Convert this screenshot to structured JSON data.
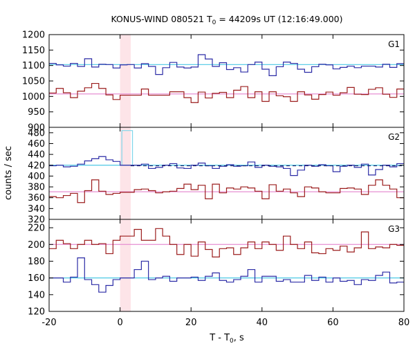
{
  "colors": {
    "blue": "#2b2ba6",
    "red": "#9b1c1c",
    "cyan": "#4cc8e4",
    "pink": "#e68fd2",
    "highlight": "#fde4e8",
    "peak": "#7fd6ea",
    "dashed": "#1a1a66"
  },
  "chart_data": {
    "type": "line",
    "title": {
      "main": "KONUS-WIND 080521 T",
      "sub": "0",
      "rest": " = 44209s UT (12:16:49.000)"
    },
    "xlabel": {
      "main": "T - T",
      "sub": "0",
      "rest": ", s"
    },
    "ylabel": "counts / sec",
    "xlim": [
      -20,
      80
    ],
    "xticks": [
      -20,
      0,
      20,
      40,
      60,
      80
    ],
    "highlight": [
      0,
      3
    ],
    "bin_width": 2,
    "bin_start": -20,
    "panels": [
      {
        "label": "G1",
        "ylim": [
          900,
          1200
        ],
        "yticks": [
          900,
          950,
          1000,
          1050,
          1100,
          1150,
          1200
        ],
        "series": [
          {
            "color": "blue",
            "values": [
              1107,
              1102,
              1098,
              1107,
              1097,
              1122,
              1095,
              1104,
              1103,
              1092,
              1102,
              1103,
              1092,
              1106,
              1097,
              1071,
              1093,
              1110,
              1095,
              1092,
              1095,
              1135,
              1121,
              1097,
              1109,
              1087,
              1093,
              1079,
              1103,
              1111,
              1088,
              1067,
              1096,
              1111,
              1107,
              1088,
              1078,
              1096,
              1104,
              1102,
              1089,
              1094,
              1098,
              1093,
              1098,
              1098,
              1095,
              1104,
              1094,
              1106
            ],
            "mean": 1103
          },
          {
            "color": "red",
            "values": [
              1011,
              1026,
              1012,
              996,
              1017,
              1028,
              1042,
              1026,
              1005,
              990,
              1004,
              1004,
              1004,
              1024,
              1004,
              1004,
              1004,
              1015,
              1015,
              996,
              980,
              1014,
              995,
              1010,
              1013,
              996,
              1020,
              1032,
              996,
              1015,
              984,
              1015,
              1002,
              999,
              984,
              1015,
              1005,
              991,
              1006,
              1014,
              1004,
              1012,
              1029,
              1007,
              1006,
              1023,
              1028,
              1007,
              997,
              1024
            ],
            "mean": 1008
          }
        ]
      },
      {
        "label": "G2",
        "ylim": [
          320,
          490
        ],
        "yticks": [
          320,
          340,
          360,
          380,
          400,
          420,
          440,
          460,
          480
        ],
        "series": [
          {
            "color": "blue",
            "values": [
              419,
              420,
              417,
              418,
              422,
              428,
              432,
              436,
              430,
              427,
              420,
              420,
              420,
              422,
              414,
              416,
              420,
              423,
              415,
              414,
              420,
              424,
              419,
              414,
              418,
              421,
              418,
              419,
              426,
              416,
              420,
              418,
              417,
              414,
              401,
              411,
              420,
              418,
              421,
              419,
              408,
              418,
              420,
              416,
              422,
              402,
              412,
              420,
              417,
              423
            ],
            "mean": 420
          },
          {
            "color": "red",
            "values": [
              362,
              360,
              364,
              368,
              351,
              373,
              393,
              372,
              366,
              368,
              370,
              370,
              375,
              376,
              373,
              369,
              371,
              372,
              377,
              385,
              375,
              383,
              358,
              385,
              369,
              378,
              376,
              380,
              378,
              372,
              358,
              384,
              372,
              376,
              369,
              362,
              380,
              378,
              371,
              369,
              369,
              377,
              378,
              376,
              366,
              383,
              393,
              383,
              376,
              360
            ],
            "mean": 371
          }
        ],
        "peak": {
          "t0": 0.5,
          "t1": 3.5,
          "value": 484
        },
        "dashed_level": 419
      },
      {
        "label": "G3",
        "ylim": [
          120,
          230
        ],
        "yticks": [
          120,
          140,
          160,
          180,
          200,
          220
        ],
        "series": [
          {
            "color": "blue",
            "values": [
              160,
              160,
              155,
              161,
              184,
              158,
              152,
              143,
              151,
              158,
              160,
              160,
              170,
              180,
              158,
              160,
              162,
              156,
              160,
              160,
              161,
              157,
              162,
              166,
              157,
              155,
              158,
              162,
              170,
              155,
              162,
              162,
              156,
              158,
              155,
              155,
              163,
              157,
              161,
              155,
              160,
              156,
              157,
              152,
              158,
              157,
              163,
              167,
              154,
              155
            ],
            "mean": 160
          },
          {
            "color": "red",
            "values": [
              195,
              205,
              201,
              195,
              200,
              205,
              200,
              201,
              189,
              205,
              210,
              210,
              218,
              205,
              205,
              219,
              210,
              200,
              188,
              200,
              186,
              203,
              194,
              185,
              195,
              196,
              188,
              196,
              203,
              195,
              203,
              200,
              193,
              210,
              200,
              195,
              203,
              190,
              189,
              195,
              193,
              198,
              191,
              196,
              215,
              195,
              197,
              196,
              200,
              199
            ],
            "mean": 200
          }
        ]
      }
    ]
  }
}
